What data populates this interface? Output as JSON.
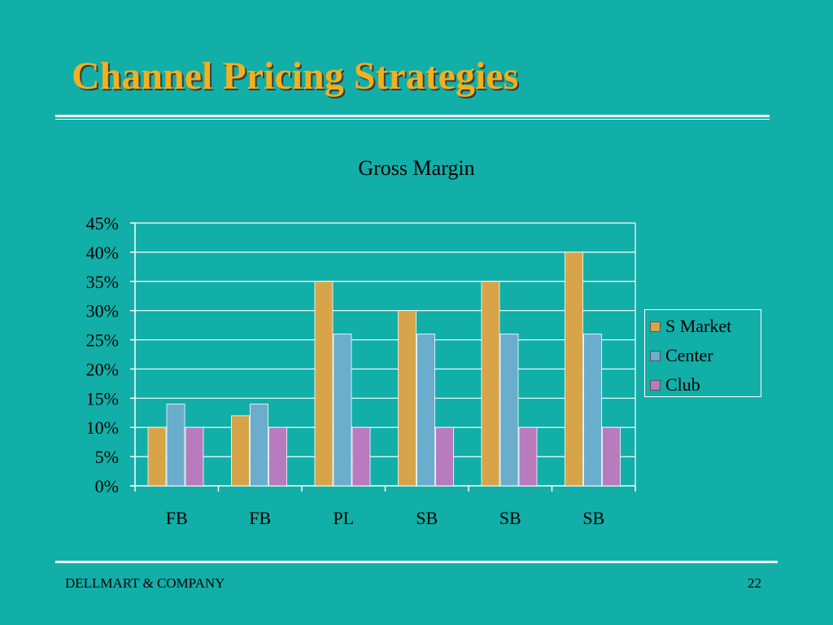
{
  "slide": {
    "title": "Channel Pricing Strategies",
    "footer_left": "DELLMART & COMPANY",
    "page_number": "22",
    "background": "#11AFA8",
    "title_color": "#F0B020"
  },
  "chart_data": {
    "type": "bar",
    "title": "Gross Margin",
    "xlabel": "",
    "ylabel": "",
    "categories": [
      "FB",
      "FB",
      "PL",
      "SB",
      "SB",
      "SB"
    ],
    "series": [
      {
        "name": "S Market",
        "color": "#D7A44A",
        "values": [
          0.1,
          0.12,
          0.35,
          0.3,
          0.35,
          0.4
        ]
      },
      {
        "name": "Center",
        "color": "#6AADCC",
        "values": [
          0.14,
          0.14,
          0.26,
          0.26,
          0.26,
          0.26
        ]
      },
      {
        "name": "Club",
        "color": "#B77BBE",
        "values": [
          0.1,
          0.1,
          0.1,
          0.1,
          0.1,
          0.1
        ]
      }
    ],
    "ylim": [
      0,
      0.45
    ],
    "yticks": [
      0,
      0.05,
      0.1,
      0.15,
      0.2,
      0.25,
      0.3,
      0.35,
      0.4,
      0.45
    ],
    "ytick_labels": [
      "0%",
      "5%",
      "10%",
      "15%",
      "20%",
      "25%",
      "30%",
      "35%",
      "40%",
      "45%"
    ],
    "grid": true,
    "legend_position": "right"
  }
}
